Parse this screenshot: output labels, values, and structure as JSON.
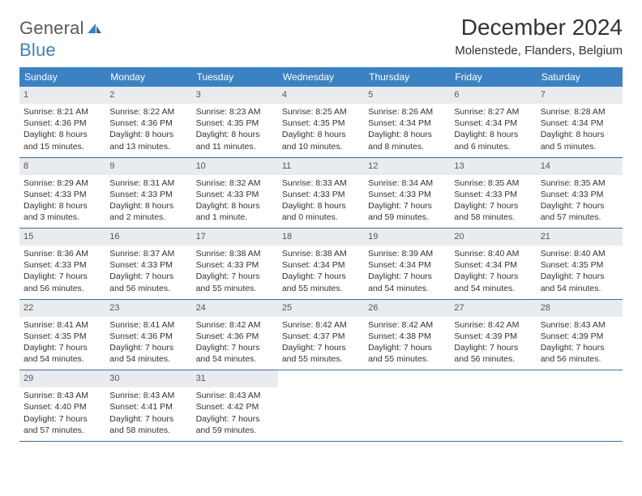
{
  "logo": {
    "general": "General",
    "blue": "Blue"
  },
  "title": "December 2024",
  "location": "Molenstede, Flanders, Belgium",
  "colors": {
    "header_bg": "#3b82c4",
    "daynum_bg": "#e9ecef",
    "row_border": "#3b6ea0",
    "text": "#333333",
    "logo_gray": "#58595b",
    "logo_blue": "#3b82c4"
  },
  "dow": [
    "Sunday",
    "Monday",
    "Tuesday",
    "Wednesday",
    "Thursday",
    "Friday",
    "Saturday"
  ],
  "weeks": [
    [
      {
        "n": "1",
        "sr": "Sunrise: 8:21 AM",
        "ss": "Sunset: 4:36 PM",
        "d1": "Daylight: 8 hours",
        "d2": "and 15 minutes."
      },
      {
        "n": "2",
        "sr": "Sunrise: 8:22 AM",
        "ss": "Sunset: 4:36 PM",
        "d1": "Daylight: 8 hours",
        "d2": "and 13 minutes."
      },
      {
        "n": "3",
        "sr": "Sunrise: 8:23 AM",
        "ss": "Sunset: 4:35 PM",
        "d1": "Daylight: 8 hours",
        "d2": "and 11 minutes."
      },
      {
        "n": "4",
        "sr": "Sunrise: 8:25 AM",
        "ss": "Sunset: 4:35 PM",
        "d1": "Daylight: 8 hours",
        "d2": "and 10 minutes."
      },
      {
        "n": "5",
        "sr": "Sunrise: 8:26 AM",
        "ss": "Sunset: 4:34 PM",
        "d1": "Daylight: 8 hours",
        "d2": "and 8 minutes."
      },
      {
        "n": "6",
        "sr": "Sunrise: 8:27 AM",
        "ss": "Sunset: 4:34 PM",
        "d1": "Daylight: 8 hours",
        "d2": "and 6 minutes."
      },
      {
        "n": "7",
        "sr": "Sunrise: 8:28 AM",
        "ss": "Sunset: 4:34 PM",
        "d1": "Daylight: 8 hours",
        "d2": "and 5 minutes."
      }
    ],
    [
      {
        "n": "8",
        "sr": "Sunrise: 8:29 AM",
        "ss": "Sunset: 4:33 PM",
        "d1": "Daylight: 8 hours",
        "d2": "and 3 minutes."
      },
      {
        "n": "9",
        "sr": "Sunrise: 8:31 AM",
        "ss": "Sunset: 4:33 PM",
        "d1": "Daylight: 8 hours",
        "d2": "and 2 minutes."
      },
      {
        "n": "10",
        "sr": "Sunrise: 8:32 AM",
        "ss": "Sunset: 4:33 PM",
        "d1": "Daylight: 8 hours",
        "d2": "and 1 minute."
      },
      {
        "n": "11",
        "sr": "Sunrise: 8:33 AM",
        "ss": "Sunset: 4:33 PM",
        "d1": "Daylight: 8 hours",
        "d2": "and 0 minutes."
      },
      {
        "n": "12",
        "sr": "Sunrise: 8:34 AM",
        "ss": "Sunset: 4:33 PM",
        "d1": "Daylight: 7 hours",
        "d2": "and 59 minutes."
      },
      {
        "n": "13",
        "sr": "Sunrise: 8:35 AM",
        "ss": "Sunset: 4:33 PM",
        "d1": "Daylight: 7 hours",
        "d2": "and 58 minutes."
      },
      {
        "n": "14",
        "sr": "Sunrise: 8:35 AM",
        "ss": "Sunset: 4:33 PM",
        "d1": "Daylight: 7 hours",
        "d2": "and 57 minutes."
      }
    ],
    [
      {
        "n": "15",
        "sr": "Sunrise: 8:36 AM",
        "ss": "Sunset: 4:33 PM",
        "d1": "Daylight: 7 hours",
        "d2": "and 56 minutes."
      },
      {
        "n": "16",
        "sr": "Sunrise: 8:37 AM",
        "ss": "Sunset: 4:33 PM",
        "d1": "Daylight: 7 hours",
        "d2": "and 56 minutes."
      },
      {
        "n": "17",
        "sr": "Sunrise: 8:38 AM",
        "ss": "Sunset: 4:33 PM",
        "d1": "Daylight: 7 hours",
        "d2": "and 55 minutes."
      },
      {
        "n": "18",
        "sr": "Sunrise: 8:38 AM",
        "ss": "Sunset: 4:34 PM",
        "d1": "Daylight: 7 hours",
        "d2": "and 55 minutes."
      },
      {
        "n": "19",
        "sr": "Sunrise: 8:39 AM",
        "ss": "Sunset: 4:34 PM",
        "d1": "Daylight: 7 hours",
        "d2": "and 54 minutes."
      },
      {
        "n": "20",
        "sr": "Sunrise: 8:40 AM",
        "ss": "Sunset: 4:34 PM",
        "d1": "Daylight: 7 hours",
        "d2": "and 54 minutes."
      },
      {
        "n": "21",
        "sr": "Sunrise: 8:40 AM",
        "ss": "Sunset: 4:35 PM",
        "d1": "Daylight: 7 hours",
        "d2": "and 54 minutes."
      }
    ],
    [
      {
        "n": "22",
        "sr": "Sunrise: 8:41 AM",
        "ss": "Sunset: 4:35 PM",
        "d1": "Daylight: 7 hours",
        "d2": "and 54 minutes."
      },
      {
        "n": "23",
        "sr": "Sunrise: 8:41 AM",
        "ss": "Sunset: 4:36 PM",
        "d1": "Daylight: 7 hours",
        "d2": "and 54 minutes."
      },
      {
        "n": "24",
        "sr": "Sunrise: 8:42 AM",
        "ss": "Sunset: 4:36 PM",
        "d1": "Daylight: 7 hours",
        "d2": "and 54 minutes."
      },
      {
        "n": "25",
        "sr": "Sunrise: 8:42 AM",
        "ss": "Sunset: 4:37 PM",
        "d1": "Daylight: 7 hours",
        "d2": "and 55 minutes."
      },
      {
        "n": "26",
        "sr": "Sunrise: 8:42 AM",
        "ss": "Sunset: 4:38 PM",
        "d1": "Daylight: 7 hours",
        "d2": "and 55 minutes."
      },
      {
        "n": "27",
        "sr": "Sunrise: 8:42 AM",
        "ss": "Sunset: 4:39 PM",
        "d1": "Daylight: 7 hours",
        "d2": "and 56 minutes."
      },
      {
        "n": "28",
        "sr": "Sunrise: 8:43 AM",
        "ss": "Sunset: 4:39 PM",
        "d1": "Daylight: 7 hours",
        "d2": "and 56 minutes."
      }
    ],
    [
      {
        "n": "29",
        "sr": "Sunrise: 8:43 AM",
        "ss": "Sunset: 4:40 PM",
        "d1": "Daylight: 7 hours",
        "d2": "and 57 minutes."
      },
      {
        "n": "30",
        "sr": "Sunrise: 8:43 AM",
        "ss": "Sunset: 4:41 PM",
        "d1": "Daylight: 7 hours",
        "d2": "and 58 minutes."
      },
      {
        "n": "31",
        "sr": "Sunrise: 8:43 AM",
        "ss": "Sunset: 4:42 PM",
        "d1": "Daylight: 7 hours",
        "d2": "and 59 minutes."
      },
      {
        "empty": true
      },
      {
        "empty": true
      },
      {
        "empty": true
      },
      {
        "empty": true
      }
    ]
  ]
}
